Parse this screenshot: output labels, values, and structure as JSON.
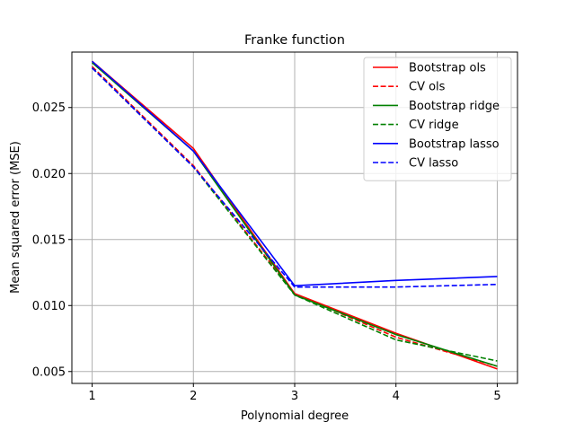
{
  "chart_data": {
    "type": "line",
    "title": "Franke function",
    "xlabel": "Polynomial degree",
    "ylabel": "Mean squared error (MSE)",
    "x": [
      1,
      2,
      3,
      4,
      5
    ],
    "xlim": [
      0.8,
      5.2
    ],
    "ylim": [
      0.0041,
      0.0292
    ],
    "xticks": [
      1,
      2,
      3,
      4,
      5
    ],
    "yticks": [
      0.005,
      0.01,
      0.015,
      0.02,
      0.025
    ],
    "ytick_labels": [
      "0.005",
      "0.010",
      "0.015",
      "0.020",
      "0.025"
    ],
    "grid": true,
    "legend_position": "top-right",
    "series": [
      {
        "name": "Bootstrap ols",
        "color": "#ff0000",
        "dash": "solid",
        "values": [
          0.0285,
          0.0219,
          0.0109,
          0.0079,
          0.0052
        ]
      },
      {
        "name": "CV ols",
        "color": "#ff0000",
        "dash": "dashed",
        "values": [
          0.0281,
          0.0206,
          0.0109,
          0.0076,
          0.0054
        ]
      },
      {
        "name": "Bootstrap ridge",
        "color": "#008000",
        "dash": "solid",
        "values": [
          0.0284,
          0.0217,
          0.0108,
          0.0078,
          0.0054
        ]
      },
      {
        "name": "CV ridge",
        "color": "#008000",
        "dash": "dashed",
        "values": [
          0.028,
          0.0205,
          0.0108,
          0.0074,
          0.0058
        ]
      },
      {
        "name": "Bootstrap lasso",
        "color": "#0000ff",
        "dash": "solid",
        "values": [
          0.0285,
          0.0217,
          0.0115,
          0.0119,
          0.0122
        ]
      },
      {
        "name": "CV lasso",
        "color": "#0000ff",
        "dash": "dashed",
        "values": [
          0.028,
          0.0205,
          0.0114,
          0.0114,
          0.0116
        ]
      }
    ]
  }
}
